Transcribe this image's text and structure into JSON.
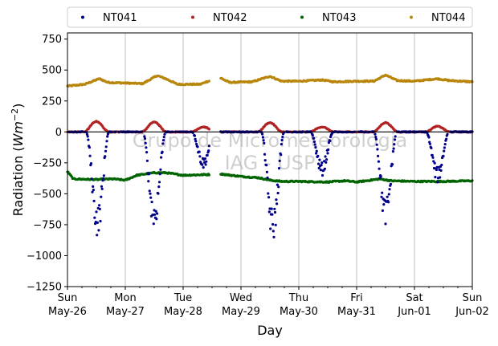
{
  "chart_data": {
    "type": "scatter",
    "xlabel": "Day",
    "ylabel_main": "Radiation (",
    "ylabel_unit": "Wm",
    "ylabel_exp": "−2",
    "ylabel_close": ")",
    "ylim": [
      -1250,
      800
    ],
    "yticks": [
      -1250,
      -1000,
      -750,
      -500,
      -250,
      0,
      250,
      500,
      750
    ],
    "ytick_labels": [
      "−1250",
      "−1000",
      "−750",
      "−500",
      "−250",
      "0",
      "250",
      "500",
      "750"
    ],
    "xlim_days": [
      0,
      7
    ],
    "xtick_labels": [
      {
        "day": 0,
        "l1": "Sun",
        "l2": "May-26"
      },
      {
        "day": 1,
        "l1": "Mon",
        "l2": "May-27"
      },
      {
        "day": 2,
        "l1": "Tue",
        "l2": "May-28"
      },
      {
        "day": 3,
        "l1": "Wed",
        "l2": "May-29"
      },
      {
        "day": 4,
        "l1": "Thu",
        "l2": "May-30"
      },
      {
        "day": 5,
        "l1": "Fri",
        "l2": "May-31"
      },
      {
        "day": 6,
        "l1": "Sat",
        "l2": "Jun-01"
      },
      {
        "day": 7,
        "l1": "Sun",
        "l2": "Jun-02"
      }
    ],
    "grid": "vertical",
    "legend_position": "top",
    "watermark_line1": "Grupo de Micrometeorologia",
    "watermark_line2": "IAG - USP",
    "gaps": [
      [
        2.45,
        2.65
      ]
    ],
    "series": [
      {
        "name": "NT041",
        "color": "#00008b",
        "kind": "net",
        "base": 0,
        "days": [
          {
            "center": 0.52,
            "amp": -720
          },
          {
            "center": 1.5,
            "amp": -680
          },
          {
            "center": 2.35,
            "amp": -250
          },
          {
            "center": 3.55,
            "amp": -760
          },
          {
            "center": 4.4,
            "amp": -300
          },
          {
            "center": 5.5,
            "amp": -650
          },
          {
            "center": 6.4,
            "amp": -350
          }
        ]
      },
      {
        "name": "NT042",
        "color": "#b22222",
        "kind": "bump",
        "base": 0,
        "days": [
          {
            "center": 0.5,
            "amp": 85
          },
          {
            "center": 1.5,
            "amp": 80
          },
          {
            "center": 2.35,
            "amp": 40
          },
          {
            "center": 3.5,
            "amp": 75
          },
          {
            "center": 4.4,
            "amp": 40
          },
          {
            "center": 5.5,
            "amp": 75
          },
          {
            "center": 6.4,
            "amp": 45
          }
        ]
      },
      {
        "name": "NT043",
        "color": "#006400",
        "kind": "smooth",
        "points": [
          [
            0,
            -320
          ],
          [
            0.1,
            -380
          ],
          [
            0.5,
            -385
          ],
          [
            0.8,
            -380
          ],
          [
            1.0,
            -390
          ],
          [
            1.2,
            -350
          ],
          [
            1.5,
            -330
          ],
          [
            1.7,
            -330
          ],
          [
            2.0,
            -350
          ],
          [
            2.4,
            -345
          ],
          [
            2.65,
            -340
          ],
          [
            3.0,
            -360
          ],
          [
            3.3,
            -370
          ],
          [
            3.5,
            -390
          ],
          [
            3.7,
            -400
          ],
          [
            4.0,
            -400
          ],
          [
            4.5,
            -405
          ],
          [
            4.8,
            -395
          ],
          [
            5.0,
            -405
          ],
          [
            5.4,
            -380
          ],
          [
            5.6,
            -395
          ],
          [
            6.0,
            -400
          ],
          [
            6.5,
            -400
          ],
          [
            7.0,
            -395
          ]
        ]
      },
      {
        "name": "NT044",
        "color": "#b8860b",
        "kind": "smooth",
        "points": [
          [
            0,
            370
          ],
          [
            0.3,
            385
          ],
          [
            0.55,
            430
          ],
          [
            0.7,
            400
          ],
          [
            1.0,
            395
          ],
          [
            1.3,
            390
          ],
          [
            1.55,
            455
          ],
          [
            1.7,
            430
          ],
          [
            1.9,
            385
          ],
          [
            2.3,
            385
          ],
          [
            2.4,
            405
          ],
          [
            2.65,
            435
          ],
          [
            2.8,
            400
          ],
          [
            3.2,
            405
          ],
          [
            3.5,
            450
          ],
          [
            3.7,
            410
          ],
          [
            4.0,
            410
          ],
          [
            4.4,
            420
          ],
          [
            4.6,
            405
          ],
          [
            5.0,
            410
          ],
          [
            5.3,
            410
          ],
          [
            5.5,
            460
          ],
          [
            5.7,
            415
          ],
          [
            6.0,
            410
          ],
          [
            6.4,
            430
          ],
          [
            6.6,
            415
          ],
          [
            7.0,
            405
          ]
        ]
      }
    ]
  }
}
